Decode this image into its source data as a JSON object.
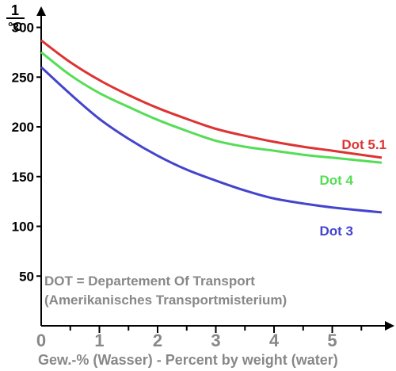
{
  "chart_data": {
    "type": "line",
    "y_unit_label": {
      "numerator": "1",
      "denominator": "°C"
    },
    "xlabel": "Gew.-% (Wasser) - Percent by weight (water)",
    "ylabel": "",
    "xlim": [
      0,
      5.85
    ],
    "ylim": [
      0,
      310
    ],
    "x_ticks": [
      0,
      1,
      2,
      3,
      4,
      5
    ],
    "x_tick_labels": [
      "0",
      "1",
      "2",
      "3",
      "4",
      "5"
    ],
    "y_ticks": [
      50,
      100,
      150,
      200,
      250,
      300
    ],
    "y_tick_labels": [
      "50",
      "100",
      "150",
      "200",
      "250",
      "300"
    ],
    "grid": false,
    "annotation_lines": [
      "DOT = Departement Of Transport",
      "(Amerikanisches Transportmisterium)"
    ],
    "series": [
      {
        "name": "Dot  5.1",
        "color": "#dd3333",
        "x": [
          0,
          0.5,
          1,
          1.5,
          2,
          2.5,
          3,
          3.5,
          4,
          4.5,
          5,
          5.85
        ],
        "y": [
          287,
          265,
          247,
          232,
          219,
          208,
          198,
          191,
          185,
          180,
          176,
          169
        ]
      },
      {
        "name": "Dot  4",
        "color": "#55dd55",
        "x": [
          0,
          0.5,
          1,
          1.5,
          2,
          2.5,
          3,
          3.5,
          4,
          4.5,
          5,
          5.85
        ],
        "y": [
          275,
          252,
          234,
          220,
          207,
          196,
          186,
          180,
          176,
          172,
          169,
          164
        ]
      },
      {
        "name": "Dot 3",
        "color": "#4444cc",
        "x": [
          0,
          0.5,
          1,
          1.5,
          2,
          2.5,
          3,
          3.5,
          4,
          4.5,
          5,
          5.85
        ],
        "y": [
          260,
          233,
          208,
          188,
          171,
          157,
          146,
          136,
          128,
          123,
          119,
          114
        ]
      }
    ]
  }
}
